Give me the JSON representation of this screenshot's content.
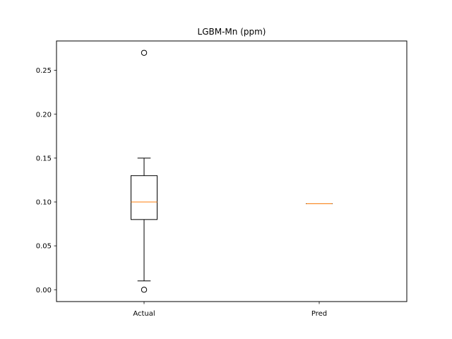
{
  "chart_data": {
    "type": "boxplot",
    "title": "LGBM-Mn (ppm)",
    "xlabel": "",
    "ylabel": "",
    "categories": [
      "Actual",
      "Pred"
    ],
    "ylim": [
      -0.0135,
      0.2835
    ],
    "yticks": [
      0.0,
      0.05,
      0.1,
      0.15,
      0.2,
      0.25
    ],
    "ytick_labels": [
      "0.00",
      "0.05",
      "0.10",
      "0.15",
      "0.20",
      "0.25"
    ],
    "grid": false,
    "boxes": [
      {
        "name": "Actual",
        "whisker_low": 0.01,
        "q1": 0.08,
        "median": 0.1,
        "q3": 0.13,
        "whisker_high": 0.15,
        "outliers": [
          0.27,
          0.0
        ]
      },
      {
        "name": "Pred",
        "whisker_low": 0.098,
        "q1": 0.098,
        "median": 0.098,
        "q3": 0.098,
        "whisker_high": 0.098,
        "outliers": []
      }
    ],
    "colors": {
      "box": "#000000",
      "median": "#ff7f0e",
      "background": "#ffffff"
    }
  }
}
